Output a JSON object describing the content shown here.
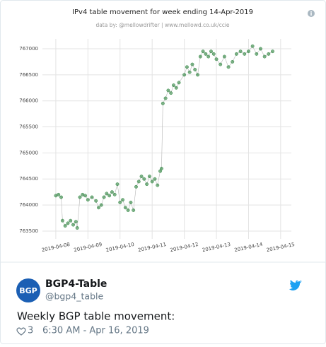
{
  "chart_data": {
    "type": "line",
    "title": "IPv4 table movement for week ending 14-Apr-2019",
    "subtitle": "data by: @mellowdrifter | www.mellowd.co.uk/ccie",
    "x": [
      "2019-04-08 00:00",
      "2019-04-08 02:00",
      "2019-04-08 04:00",
      "2019-04-08 05:00",
      "2019-04-08 07:00",
      "2019-04-08 09:00",
      "2019-04-08 11:00",
      "2019-04-08 13:00",
      "2019-04-08 15:00",
      "2019-04-08 16:00",
      "2019-04-08 18:00",
      "2019-04-08 20:00",
      "2019-04-08 22:00",
      "2019-04-09 00:00",
      "2019-04-09 03:00",
      "2019-04-09 06:00",
      "2019-04-09 08:00",
      "2019-04-09 10:00",
      "2019-04-09 12:00",
      "2019-04-09 14:00",
      "2019-04-09 16:00",
      "2019-04-09 18:00",
      "2019-04-09 20:00",
      "2019-04-09 22:00",
      "2019-04-10 00:00",
      "2019-04-10 02:00",
      "2019-04-10 04:00",
      "2019-04-10 06:00",
      "2019-04-10 08:00",
      "2019-04-10 10:00",
      "2019-04-10 12:00",
      "2019-04-10 14:00",
      "2019-04-10 16:00",
      "2019-04-10 18:00",
      "2019-04-10 20:00",
      "2019-04-10 22:00",
      "2019-04-11 00:00",
      "2019-04-11 02:00",
      "2019-04-11 04:00",
      "2019-04-11 06:00",
      "2019-04-11 07:00",
      "2019-04-11 08:00",
      "2019-04-11 10:00",
      "2019-04-11 12:00",
      "2019-04-11 14:00",
      "2019-04-11 16:00",
      "2019-04-11 18:00",
      "2019-04-11 20:00",
      "2019-04-12 00:00",
      "2019-04-12 02:00",
      "2019-04-12 04:00",
      "2019-04-12 06:00",
      "2019-04-12 08:00",
      "2019-04-12 10:00",
      "2019-04-12 12:00",
      "2019-04-12 14:00",
      "2019-04-12 16:00",
      "2019-04-12 18:00",
      "2019-04-12 20:00",
      "2019-04-12 22:00",
      "2019-04-13 00:00",
      "2019-04-13 03:00",
      "2019-04-13 06:00",
      "2019-04-13 09:00",
      "2019-04-13 12:00",
      "2019-04-13 15:00",
      "2019-04-13 18:00",
      "2019-04-13 21:00",
      "2019-04-14 00:00",
      "2019-04-14 03:00",
      "2019-04-14 06:00",
      "2019-04-14 09:00",
      "2019-04-14 12:00",
      "2019-04-14 15:00",
      "2019-04-14 18:00"
    ],
    "values": [
      764180,
      764200,
      764150,
      763700,
      763600,
      763650,
      763700,
      763620,
      763680,
      763560,
      764150,
      764200,
      764180,
      764100,
      764150,
      764080,
      763950,
      764000,
      764150,
      764220,
      764180,
      764250,
      764200,
      764400,
      764050,
      764100,
      763950,
      763900,
      764050,
      763900,
      764350,
      764450,
      764550,
      764500,
      764400,
      764550,
      764450,
      764500,
      764380,
      764650,
      764700,
      765950,
      766050,
      766200,
      766150,
      766300,
      766250,
      766350,
      766500,
      766650,
      766550,
      766700,
      766600,
      766500,
      766850,
      766950,
      766900,
      766850,
      766950,
      766900,
      766800,
      766700,
      766850,
      766650,
      766750,
      766900,
      766950,
      766900,
      766950,
      767050,
      766900,
      767000,
      766850,
      766900,
      766950
    ],
    "color": "#2e8540",
    "xlim": [
      "2019-04-07 14:00",
      "2019-04-15 08:00"
    ],
    "xticks": [
      "2019-04-08",
      "2019-04-09",
      "2019-04-10",
      "2019-04-11",
      "2019-04-12",
      "2019-04-13",
      "2019-04-14",
      "2019-04-15"
    ],
    "ylim": [
      763350,
      767190
    ],
    "yticks": [
      763500,
      764000,
      764500,
      765000,
      765500,
      766000,
      766500,
      767000
    ],
    "grid": true
  },
  "tweet": {
    "avatar_text": "BGP",
    "name": "BGP4-Table",
    "handle": "@bgp4_table",
    "text": "Weekly BGP table movement:",
    "likes": "3",
    "time": "6:30 AM - Apr 16, 2019"
  }
}
